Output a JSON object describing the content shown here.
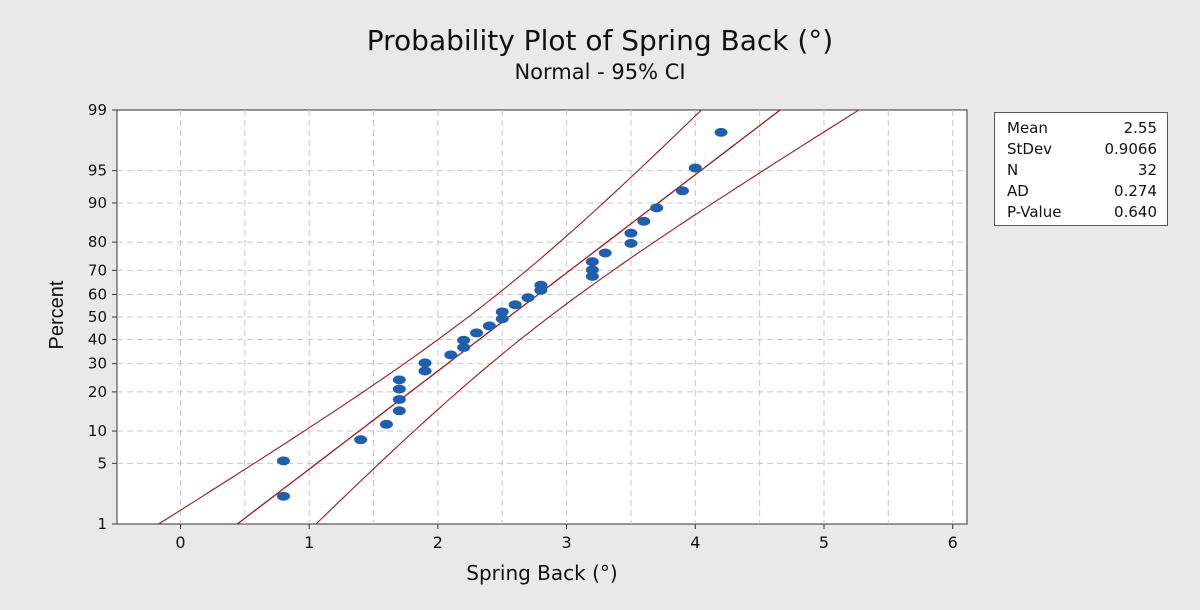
{
  "chart_data": {
    "type": "scatter",
    "title": "Probability Plot of Spring Back (°)",
    "subtitle": "Normal - 95% CI",
    "xlabel": "Spring Back (°)",
    "ylabel": "Percent",
    "xlim": [
      -0.5,
      6.1
    ],
    "ylim_percent": [
      1,
      99
    ],
    "y_scale": "normal-probability",
    "x_ticks": [
      0,
      1,
      2,
      3,
      4,
      5,
      6
    ],
    "y_ticks": [
      1,
      5,
      10,
      20,
      30,
      40,
      50,
      60,
      70,
      80,
      90,
      95,
      99
    ],
    "grid": true,
    "fit_line": {
      "mean": 2.55,
      "stdev": 0.9066,
      "color": "#9b1b1b"
    },
    "confidence_band": {
      "level": 0.95,
      "n": 32,
      "color": "#9b1b1b"
    },
    "point_color": "#1f5fae",
    "points": [
      {
        "x": 0.8,
        "y": 2.2
      },
      {
        "x": 0.8,
        "y": 5.3
      },
      {
        "x": 1.4,
        "y": 8.4
      },
      {
        "x": 1.6,
        "y": 11.4
      },
      {
        "x": 1.7,
        "y": 14.6
      },
      {
        "x": 1.7,
        "y": 17.7
      },
      {
        "x": 1.7,
        "y": 20.9
      },
      {
        "x": 1.7,
        "y": 24.0
      },
      {
        "x": 1.9,
        "y": 27.2
      },
      {
        "x": 1.9,
        "y": 30.3
      },
      {
        "x": 2.1,
        "y": 33.5
      },
      {
        "x": 2.2,
        "y": 36.6
      },
      {
        "x": 2.2,
        "y": 39.7
      },
      {
        "x": 2.3,
        "y": 42.9
      },
      {
        "x": 2.4,
        "y": 46.0
      },
      {
        "x": 2.5,
        "y": 49.2
      },
      {
        "x": 2.5,
        "y": 52.3
      },
      {
        "x": 2.6,
        "y": 55.5
      },
      {
        "x": 2.7,
        "y": 58.6
      },
      {
        "x": 2.8,
        "y": 61.8
      },
      {
        "x": 2.8,
        "y": 64.0
      },
      {
        "x": 3.2,
        "y": 67.6
      },
      {
        "x": 3.2,
        "y": 70.2
      },
      {
        "x": 3.2,
        "y": 73.3
      },
      {
        "x": 3.3,
        "y": 76.4
      },
      {
        "x": 3.5,
        "y": 79.6
      },
      {
        "x": 3.5,
        "y": 82.7
      },
      {
        "x": 3.6,
        "y": 85.9
      },
      {
        "x": 3.7,
        "y": 89.0
      },
      {
        "x": 3.9,
        "y": 92.2
      },
      {
        "x": 4.0,
        "y": 95.3
      },
      {
        "x": 4.2,
        "y": 98.1
      }
    ]
  },
  "stats": [
    {
      "label": "Mean",
      "value": "2.55"
    },
    {
      "label": "StDev",
      "value": "0.9066"
    },
    {
      "label": "N",
      "value": "32"
    },
    {
      "label": "AD",
      "value": "0.274"
    },
    {
      "label": "P-Value",
      "value": "0.640"
    }
  ]
}
